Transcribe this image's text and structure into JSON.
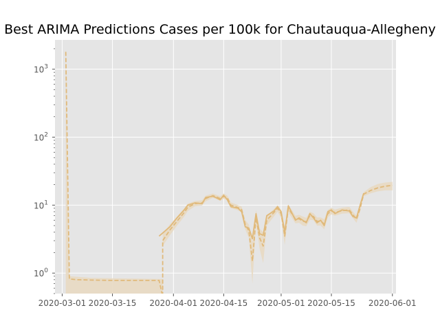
{
  "chart_data": {
    "type": "line",
    "title": "Best ARIMA Predictions Cases per 100k for Chautauqua-Allegheny",
    "xlabel": "",
    "ylabel": "",
    "yscale": "log",
    "xlim": [
      "2020-02-28",
      "2020-06-02"
    ],
    "ylim": [
      0.5,
      2700
    ],
    "grid": true,
    "legend": "none",
    "x_ticks": [
      {
        "value": "2020-03-01",
        "label": "2020-03-01"
      },
      {
        "value": "2020-03-15",
        "label": "2020-03-15"
      },
      {
        "value": "2020-04-01",
        "label": "2020-04-01"
      },
      {
        "value": "2020-04-15",
        "label": "2020-04-15"
      },
      {
        "value": "2020-05-01",
        "label": "2020-05-01"
      },
      {
        "value": "2020-05-15",
        "label": "2020-05-15"
      },
      {
        "value": "2020-06-01",
        "label": "2020-06-01"
      }
    ],
    "y_ticks": [
      {
        "value": 1,
        "base": "10",
        "exp": "0"
      },
      {
        "value": 10,
        "base": "10",
        "exp": "1"
      },
      {
        "value": 100,
        "base": "10",
        "exp": "2"
      },
      {
        "value": 1000,
        "base": "10",
        "exp": "3"
      }
    ],
    "colors": {
      "line": "#e0b97a",
      "band": "#e8d9c2",
      "plot_bg": "#e5e5e5",
      "grid": "#ffffff"
    },
    "series": [
      {
        "style": "solid",
        "points": [
          [
            "2020-03-28",
            3.5
          ],
          [
            "2020-03-31",
            4.8
          ],
          [
            "2020-04-02",
            6.5
          ],
          [
            "2020-04-04",
            8.5
          ],
          [
            "2020-04-05",
            10.0
          ],
          [
            "2020-04-07",
            10.8
          ],
          [
            "2020-04-09",
            10.5
          ],
          [
            "2020-04-10",
            13.0
          ],
          [
            "2020-04-12",
            13.5
          ],
          [
            "2020-04-13",
            12.8
          ],
          [
            "2020-04-14",
            12.0
          ],
          [
            "2020-04-15",
            14.0
          ],
          [
            "2020-04-16",
            12.0
          ],
          [
            "2020-04-17",
            9.5
          ],
          [
            "2020-04-19",
            9.0
          ],
          [
            "2020-04-20",
            8.0
          ],
          [
            "2020-04-21",
            4.8
          ],
          [
            "2020-04-22",
            4.6
          ],
          [
            "2020-04-23",
            3.2
          ],
          [
            "2020-04-24",
            7.5
          ],
          [
            "2020-04-25",
            3.8
          ],
          [
            "2020-04-26",
            3.6
          ],
          [
            "2020-04-27",
            7.0
          ],
          [
            "2020-04-29",
            8.2
          ],
          [
            "2020-04-30",
            9.5
          ],
          [
            "2020-05-01",
            8.0
          ],
          [
            "2020-05-02",
            4.0
          ],
          [
            "2020-05-03",
            9.8
          ],
          [
            "2020-05-05",
            6.0
          ],
          [
            "2020-05-06",
            6.5
          ],
          [
            "2020-05-07",
            6.0
          ],
          [
            "2020-05-08",
            5.5
          ],
          [
            "2020-05-09",
            7.5
          ],
          [
            "2020-05-10",
            6.5
          ],
          [
            "2020-05-11",
            5.5
          ],
          [
            "2020-05-12",
            6.0
          ],
          [
            "2020-05-13",
            5.0
          ],
          [
            "2020-05-14",
            8.0
          ],
          [
            "2020-05-15",
            8.5
          ],
          [
            "2020-05-16",
            7.5
          ],
          [
            "2020-05-18",
            8.5
          ],
          [
            "2020-05-20",
            8.2
          ],
          [
            "2020-05-21",
            6.8
          ],
          [
            "2020-05-22",
            6.5
          ],
          [
            "2020-05-23",
            10.0
          ],
          [
            "2020-05-24",
            15.0
          ]
        ]
      },
      {
        "style": "dashed",
        "points": [
          [
            "2020-03-02",
            1800
          ],
          [
            "2020-03-03",
            0.82
          ],
          [
            "2020-03-05",
            0.8
          ],
          [
            "2020-03-09",
            0.79
          ],
          [
            "2020-03-15",
            0.78
          ],
          [
            "2020-03-22",
            0.78
          ],
          [
            "2020-03-28",
            0.78
          ],
          [
            "2020-03-29",
            0.45
          ],
          [
            "2020-03-29",
            3.0
          ],
          [
            "2020-03-31",
            4.3
          ],
          [
            "2020-04-02",
            5.8
          ],
          [
            "2020-04-04",
            7.8
          ],
          [
            "2020-04-05",
            9.3
          ],
          [
            "2020-04-07",
            10.5
          ],
          [
            "2020-04-09",
            10.8
          ],
          [
            "2020-04-10",
            12.5
          ],
          [
            "2020-04-12",
            13.8
          ],
          [
            "2020-04-13",
            13.2
          ],
          [
            "2020-04-14",
            12.5
          ],
          [
            "2020-04-15",
            13.5
          ],
          [
            "2020-04-16",
            12.8
          ],
          [
            "2020-04-17",
            10.0
          ],
          [
            "2020-04-19",
            9.2
          ],
          [
            "2020-04-20",
            8.6
          ],
          [
            "2020-04-21",
            5.2
          ],
          [
            "2020-04-22",
            4.2
          ],
          [
            "2020-04-23",
            1.5
          ],
          [
            "2020-04-24",
            6.5
          ],
          [
            "2020-04-25",
            3.3
          ],
          [
            "2020-04-26",
            2.5
          ],
          [
            "2020-04-27",
            6.0
          ],
          [
            "2020-04-29",
            7.8
          ],
          [
            "2020-04-30",
            9.0
          ],
          [
            "2020-05-01",
            7.5
          ],
          [
            "2020-05-02",
            3.5
          ],
          [
            "2020-05-03",
            9.0
          ],
          [
            "2020-05-05",
            6.2
          ],
          [
            "2020-05-06",
            6.3
          ],
          [
            "2020-05-07",
            5.8
          ],
          [
            "2020-05-08",
            5.7
          ],
          [
            "2020-05-09",
            7.0
          ],
          [
            "2020-05-10",
            6.8
          ],
          [
            "2020-05-11",
            5.8
          ],
          [
            "2020-05-12",
            5.8
          ],
          [
            "2020-05-13",
            5.3
          ],
          [
            "2020-05-14",
            7.5
          ],
          [
            "2020-05-15",
            8.2
          ],
          [
            "2020-05-16",
            7.8
          ],
          [
            "2020-05-18",
            8.3
          ],
          [
            "2020-05-20",
            8.5
          ],
          [
            "2020-05-21",
            7.2
          ],
          [
            "2020-05-22",
            6.2
          ],
          [
            "2020-05-23",
            9.0
          ],
          [
            "2020-05-24",
            14.5
          ],
          [
            "2020-05-26",
            16.5
          ],
          [
            "2020-05-28",
            18.0
          ],
          [
            "2020-05-30",
            19.0
          ],
          [
            "2020-06-01",
            19.5
          ]
        ]
      }
    ],
    "confidence_band": {
      "upper": [
        [
          "2020-03-02",
          2000
        ],
        [
          "2020-03-03",
          0.9
        ],
        [
          "2020-03-09",
          0.85
        ],
        [
          "2020-03-28",
          0.82
        ],
        [
          "2020-03-29",
          0.82
        ],
        [
          "2020-03-29",
          3.8
        ],
        [
          "2020-03-31",
          5.2
        ],
        [
          "2020-04-02",
          6.8
        ],
        [
          "2020-04-04",
          9.0
        ],
        [
          "2020-04-05",
          10.5
        ],
        [
          "2020-04-07",
          11.5
        ],
        [
          "2020-04-09",
          11.8
        ],
        [
          "2020-04-10",
          13.8
        ],
        [
          "2020-04-12",
          14.8
        ],
        [
          "2020-04-13",
          14.2
        ],
        [
          "2020-04-14",
          13.5
        ],
        [
          "2020-04-15",
          14.8
        ],
        [
          "2020-04-16",
          13.8
        ],
        [
          "2020-04-17",
          11.0
        ],
        [
          "2020-04-19",
          10.0
        ],
        [
          "2020-04-20",
          9.5
        ],
        [
          "2020-04-21",
          6.0
        ],
        [
          "2020-04-22",
          5.2
        ],
        [
          "2020-04-23",
          2.8
        ],
        [
          "2020-04-24",
          8.5
        ],
        [
          "2020-04-25",
          4.5
        ],
        [
          "2020-04-26",
          4.0
        ],
        [
          "2020-04-27",
          7.0
        ],
        [
          "2020-04-29",
          8.8
        ],
        [
          "2020-04-30",
          10.0
        ],
        [
          "2020-05-01",
          8.5
        ],
        [
          "2020-05-02",
          4.8
        ],
        [
          "2020-05-03",
          10.2
        ],
        [
          "2020-05-05",
          7.0
        ],
        [
          "2020-05-06",
          7.2
        ],
        [
          "2020-05-07",
          6.8
        ],
        [
          "2020-05-08",
          6.5
        ],
        [
          "2020-05-09",
          8.0
        ],
        [
          "2020-05-10",
          7.6
        ],
        [
          "2020-05-11",
          6.6
        ],
        [
          "2020-05-12",
          6.6
        ],
        [
          "2020-05-13",
          6.2
        ],
        [
          "2020-05-14",
          8.5
        ],
        [
          "2020-05-15",
          9.2
        ],
        [
          "2020-05-16",
          8.6
        ],
        [
          "2020-05-18",
          9.2
        ],
        [
          "2020-05-20",
          9.4
        ],
        [
          "2020-05-21",
          8.0
        ],
        [
          "2020-05-22",
          7.0
        ],
        [
          "2020-05-23",
          10.0
        ],
        [
          "2020-05-24",
          15.5
        ],
        [
          "2020-05-26",
          18.5
        ],
        [
          "2020-05-28",
          20.5
        ],
        [
          "2020-05-30",
          21.5
        ],
        [
          "2020-06-01",
          22.0
        ]
      ],
      "lower": [
        [
          "2020-03-02",
          0.5
        ],
        [
          "2020-03-03",
          0.5
        ],
        [
          "2020-03-28",
          0.5
        ],
        [
          "2020-03-29",
          0.5
        ],
        [
          "2020-03-29",
          2.5
        ],
        [
          "2020-03-31",
          3.6
        ],
        [
          "2020-04-02",
          5.0
        ],
        [
          "2020-04-04",
          6.8
        ],
        [
          "2020-04-05",
          8.2
        ],
        [
          "2020-04-07",
          9.6
        ],
        [
          "2020-04-09",
          9.9
        ],
        [
          "2020-04-10",
          11.4
        ],
        [
          "2020-04-12",
          12.8
        ],
        [
          "2020-04-13",
          12.2
        ],
        [
          "2020-04-14",
          11.6
        ],
        [
          "2020-04-15",
          12.4
        ],
        [
          "2020-04-16",
          11.8
        ],
        [
          "2020-04-17",
          9.0
        ],
        [
          "2020-04-19",
          8.4
        ],
        [
          "2020-04-20",
          7.8
        ],
        [
          "2020-04-21",
          4.4
        ],
        [
          "2020-04-22",
          3.3
        ],
        [
          "2020-04-23",
          0.7
        ],
        [
          "2020-04-24",
          5.5
        ],
        [
          "2020-04-25",
          2.3
        ],
        [
          "2020-04-26",
          1.4
        ],
        [
          "2020-04-27",
          5.0
        ],
        [
          "2020-04-29",
          6.8
        ],
        [
          "2020-04-30",
          8.0
        ],
        [
          "2020-05-01",
          6.5
        ],
        [
          "2020-05-02",
          2.6
        ],
        [
          "2020-05-03",
          7.8
        ],
        [
          "2020-05-05",
          5.4
        ],
        [
          "2020-05-06",
          5.5
        ],
        [
          "2020-05-07",
          5.0
        ],
        [
          "2020-05-08",
          4.9
        ],
        [
          "2020-05-09",
          6.1
        ],
        [
          "2020-05-10",
          6.0
        ],
        [
          "2020-05-11",
          5.0
        ],
        [
          "2020-05-12",
          5.0
        ],
        [
          "2020-05-13",
          4.4
        ],
        [
          "2020-05-14",
          6.6
        ],
        [
          "2020-05-15",
          7.3
        ],
        [
          "2020-05-16",
          7.0
        ],
        [
          "2020-05-18",
          7.5
        ],
        [
          "2020-05-20",
          7.6
        ],
        [
          "2020-05-21",
          6.4
        ],
        [
          "2020-05-22",
          5.5
        ],
        [
          "2020-05-23",
          8.0
        ],
        [
          "2020-05-24",
          13.5
        ],
        [
          "2020-05-26",
          15.0
        ],
        [
          "2020-05-28",
          16.0
        ],
        [
          "2020-05-30",
          16.5
        ],
        [
          "2020-06-01",
          16.5
        ]
      ]
    }
  }
}
